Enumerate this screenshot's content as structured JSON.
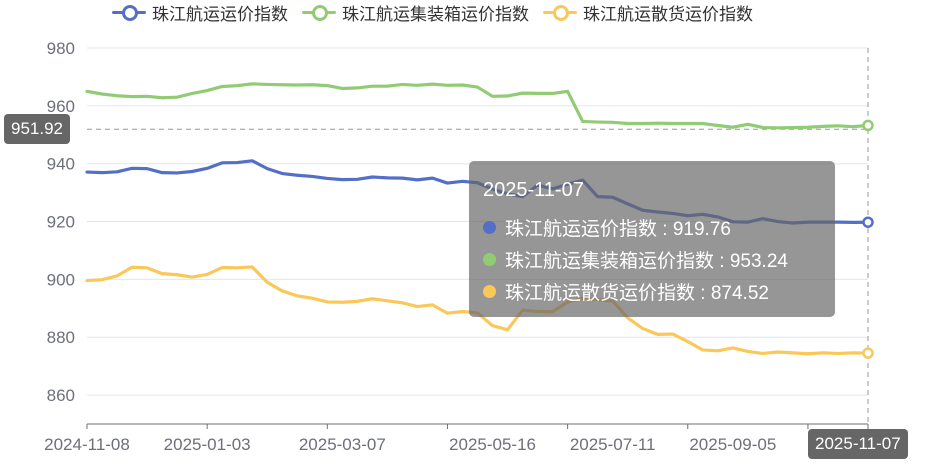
{
  "colors": {
    "series": [
      "#5470c6",
      "#91cc75",
      "#fac858"
    ],
    "grid_line": "#e0e6f1",
    "axis_text": "#6e7079",
    "pointer_label_bg": "#666666"
  },
  "legend": [
    {
      "name": "珠江航运运价指数"
    },
    {
      "name": "珠江航运集装箱运价指数"
    },
    {
      "name": "珠江航运散货运价指数"
    }
  ],
  "tooltip": {
    "title": "2025-11-07",
    "rows": [
      {
        "label": "珠江航运运价指数 : 919.76"
      },
      {
        "label": "珠江航运集装箱运价指数 : 953.24"
      },
      {
        "label": "珠江航运散货运价指数 : 874.52"
      }
    ]
  },
  "axis_pointer": {
    "y_label": "951.92",
    "x_label": "2025-11-07"
  },
  "chart_data": {
    "type": "line",
    "ylim": [
      850,
      980
    ],
    "y_ticks": [
      860,
      880,
      900,
      920,
      940,
      960,
      980
    ],
    "x_tick_labels": [
      "2024-11-08",
      "2025-01-03",
      "2025-03-07",
      "2025-05-16",
      "2025-07-11",
      "2025-09-05",
      "2025-11-07"
    ],
    "x": [
      "2024-11-08",
      "2024-11-15",
      "2024-11-22",
      "2024-11-29",
      "2024-12-06",
      "2024-12-13",
      "2024-12-20",
      "2024-12-27",
      "2025-01-03",
      "2025-01-10",
      "2025-01-17",
      "2025-01-24",
      "2025-01-31",
      "2025-02-07",
      "2025-02-14",
      "2025-02-21",
      "2025-02-28",
      "2025-03-07",
      "2025-03-14",
      "2025-03-21",
      "2025-03-28",
      "2025-04-04",
      "2025-04-11",
      "2025-04-18",
      "2025-04-25",
      "2025-05-02",
      "2025-05-09",
      "2025-05-16",
      "2025-05-23",
      "2025-05-30",
      "2025-06-06",
      "2025-06-13",
      "2025-06-20",
      "2025-06-27",
      "2025-07-04",
      "2025-07-11",
      "2025-07-18",
      "2025-07-25",
      "2025-08-01",
      "2025-08-08",
      "2025-08-15",
      "2025-08-22",
      "2025-08-29",
      "2025-09-05",
      "2025-09-12",
      "2025-09-19",
      "2025-09-26",
      "2025-10-03",
      "2025-10-10",
      "2025-10-17",
      "2025-10-24",
      "2025-10-31",
      "2025-11-07"
    ],
    "series": [
      {
        "name": "珠江航运运价指数",
        "values": [
          937.1,
          936.9,
          937.2,
          938.4,
          938.3,
          936.9,
          936.8,
          937.3,
          938.4,
          940.3,
          940.4,
          941.0,
          938.3,
          936.6,
          936.0,
          935.6,
          934.9,
          934.5,
          934.6,
          935.4,
          935.1,
          935.0,
          934.4,
          935.0,
          933.3,
          933.9,
          933.4,
          931.2,
          929.6,
          928.6,
          932.6,
          931.3,
          932.9,
          934.3,
          928.6,
          928.4,
          926.1,
          923.9,
          923.3,
          922.8,
          922.0,
          922.5,
          921.6,
          919.9,
          919.8,
          921.0,
          920.0,
          919.5,
          919.8,
          919.8,
          919.8,
          919.7,
          919.76
        ]
      },
      {
        "name": "珠江航运集装箱运价指数",
        "values": [
          965.0,
          964.1,
          963.5,
          963.2,
          963.3,
          962.8,
          963.0,
          964.3,
          965.3,
          966.7,
          967.0,
          967.6,
          967.4,
          967.3,
          967.2,
          967.3,
          967.0,
          966.0,
          966.2,
          966.8,
          966.8,
          967.4,
          967.1,
          967.5,
          967.1,
          967.2,
          966.5,
          963.3,
          963.4,
          964.4,
          964.3,
          964.3,
          965.0,
          954.6,
          954.4,
          954.3,
          953.9,
          953.9,
          954.0,
          953.9,
          953.9,
          953.9,
          953.2,
          952.6,
          953.6,
          952.5,
          952.4,
          952.5,
          952.6,
          952.9,
          953.1,
          952.8,
          953.24
        ]
      },
      {
        "name": "珠江航运散货运价指数",
        "values": [
          899.6,
          899.9,
          901.2,
          904.2,
          904.0,
          902.0,
          901.6,
          900.8,
          901.7,
          904.1,
          904.0,
          904.3,
          899.0,
          896.0,
          894.3,
          893.5,
          892.2,
          892.1,
          892.4,
          893.3,
          892.6,
          891.9,
          890.6,
          891.2,
          888.3,
          888.9,
          888.4,
          884.0,
          882.6,
          889.3,
          888.9,
          888.8,
          892.2,
          893.5,
          893.0,
          892.5,
          886.7,
          883.0,
          881.0,
          881.1,
          878.5,
          875.6,
          875.3,
          876.3,
          875.1,
          874.4,
          874.9,
          874.6,
          874.3,
          874.6,
          874.4,
          874.6,
          874.52
        ]
      }
    ]
  }
}
